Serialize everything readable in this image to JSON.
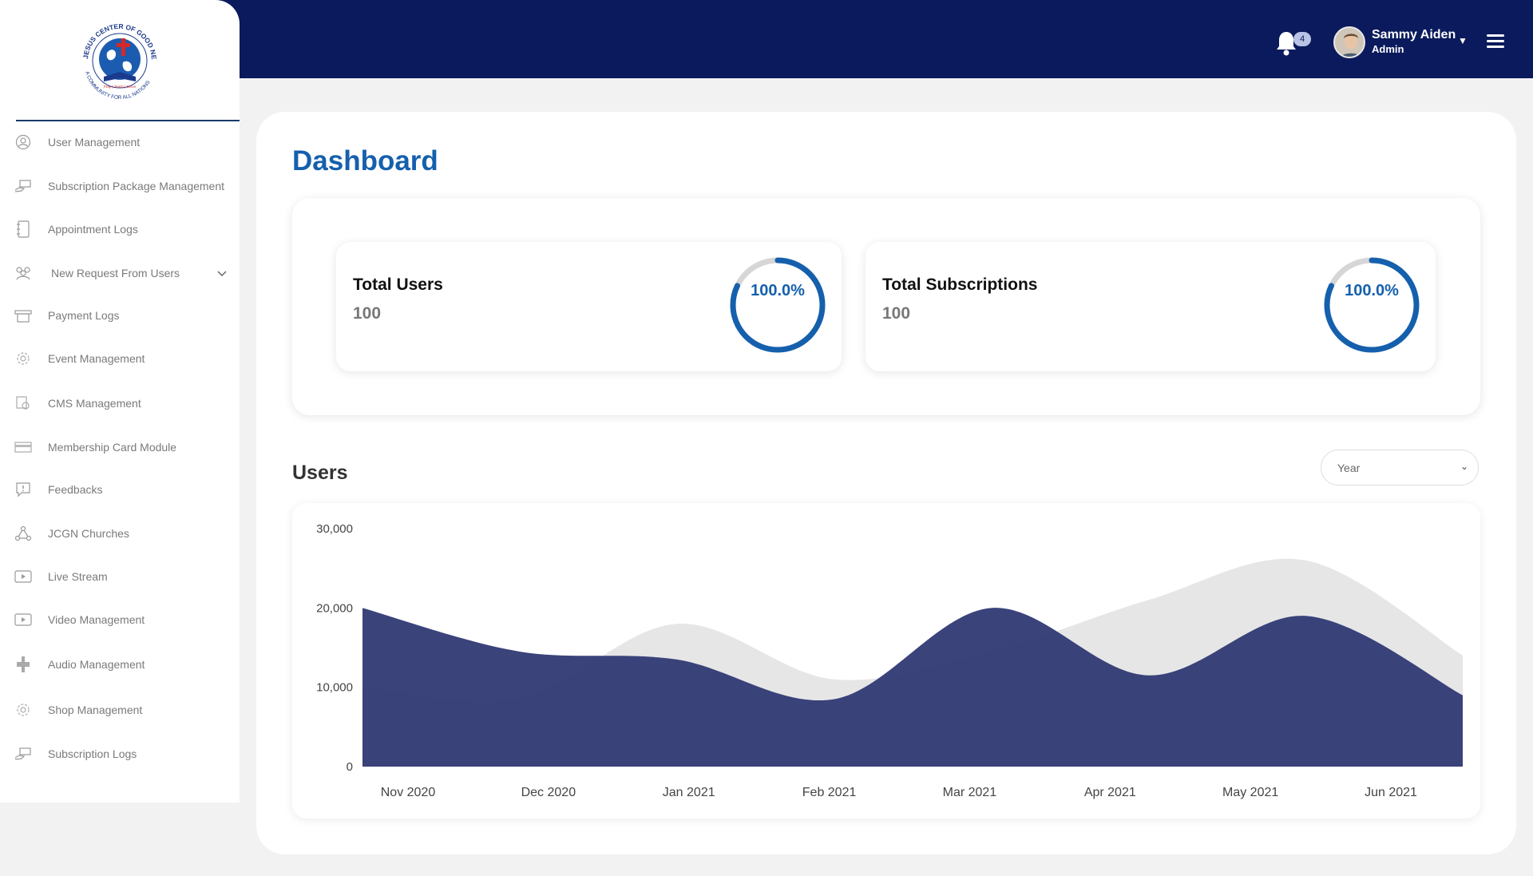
{
  "header": {
    "notification_count": "4",
    "user_name": "Sammy Aiden",
    "user_role": "Admin"
  },
  "logo": {
    "text_top": "JESUS CENTER OF GOOD NEWS",
    "text_bottom": "A COMMUNITY FOR ALL NATIONS",
    "motto": "Pray | Teach | Serve"
  },
  "sidebar": {
    "items": [
      {
        "label": "User Management",
        "icon": "user-circle-icon"
      },
      {
        "label": "Subscription Package Management",
        "icon": "hand-card-icon"
      },
      {
        "label": "Appointment Logs",
        "icon": "notebook-icon"
      },
      {
        "label": "New Request From Users",
        "icon": "group-icon"
      },
      {
        "label": "Payment Logs",
        "icon": "payment-icon"
      },
      {
        "label": "Event Management",
        "icon": "gear-icon"
      },
      {
        "label": "CMS Management",
        "icon": "cms-icon"
      },
      {
        "label": "Membership Card Module",
        "icon": "card-icon"
      },
      {
        "label": "Feedbacks",
        "icon": "feedback-icon"
      },
      {
        "label": "JCGN Churches",
        "icon": "network-icon"
      },
      {
        "label": "Live Stream",
        "icon": "play-icon"
      },
      {
        "label": "Video Management",
        "icon": "video-icon"
      },
      {
        "label": "Audio Management",
        "icon": "audio-icon"
      },
      {
        "label": "Shop Management",
        "icon": "gear-icon"
      },
      {
        "label": "Subscription Logs",
        "icon": "hand-card-icon"
      }
    ]
  },
  "main": {
    "title": "Dashboard",
    "stats": [
      {
        "title": "Total Users",
        "value": "100",
        "percent_label": "100.0%",
        "percent": 100
      },
      {
        "title": "Total Subscriptions",
        "value": "100",
        "percent_label": "100.0%",
        "percent": 100
      }
    ],
    "users_section_title": "Users",
    "period_select": {
      "selected": "Year",
      "options": [
        "Year"
      ]
    }
  },
  "colors": {
    "header_bg": "#0a1a5c",
    "accent": "#1560ad",
    "series_dark": "#2b3570",
    "series_light": "#e6e6e6"
  },
  "chart_data": {
    "type": "area",
    "x": [
      "Nov 2020",
      "Dec 2020",
      "Jan 2021",
      "Feb 2021",
      "Mar 2021",
      "Apr 2021",
      "May 2021",
      "Jun 2021"
    ],
    "yticks": [
      "0",
      "10,000",
      "20,000",
      "30,000"
    ],
    "ylim": [
      0,
      30000
    ],
    "series": [
      {
        "values": [
          10000,
          8500,
          18000,
          11000,
          14500,
          21000,
          26000,
          14000
        ],
        "color": "#e6e6e6"
      },
      {
        "values": [
          20000,
          14500,
          13500,
          8500,
          20000,
          11500,
          19000,
          9000
        ],
        "color": "#2b3570"
      }
    ],
    "grid": false,
    "legend": "none"
  }
}
